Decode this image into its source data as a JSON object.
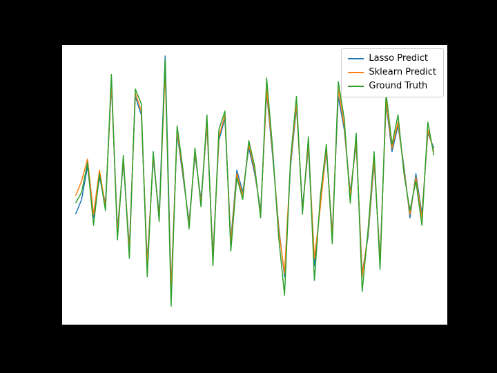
{
  "window": {
    "background_color": "#000000"
  },
  "axes": {
    "background_color": "#ffffff"
  },
  "legend": {
    "position": "upper right",
    "border_color": "#cccccc",
    "background_color": "#ffffff"
  },
  "chart_data": {
    "type": "line",
    "title": "",
    "xlabel": "",
    "ylabel": "",
    "grid": false,
    "legend_position": "upper right",
    "ylim": [
      -3.8,
      3.8
    ],
    "x_margin": 0.035,
    "x": [
      0,
      1,
      2,
      3,
      4,
      5,
      6,
      7,
      8,
      9,
      10,
      11,
      12,
      13,
      14,
      15,
      16,
      17,
      18,
      19,
      20,
      21,
      22,
      23,
      24,
      25,
      26,
      27,
      28,
      29,
      30,
      31,
      32,
      33,
      34,
      35,
      36,
      37,
      38,
      39,
      40,
      41,
      42,
      43,
      44,
      45,
      46,
      47,
      48,
      49,
      50,
      51,
      52,
      53,
      54,
      55,
      56,
      57,
      58,
      59,
      60
    ],
    "series": [
      {
        "name": "Lasso Predict",
        "color": "#1f77b4",
        "values": [
          -0.8,
          -0.4,
          0.5,
          -0.9,
          0.2,
          -0.5,
          2.7,
          -1.2,
          0.6,
          -1.7,
          2.4,
          1.9,
          -2.1,
          0.7,
          -0.8,
          3.5,
          -2.8,
          1.4,
          0.2,
          -1.0,
          0.8,
          -0.4,
          1.6,
          -1.9,
          1.2,
          1.8,
          -1.5,
          0.4,
          -0.2,
          1.0,
          0.3,
          -0.7,
          2.5,
          0.8,
          -1.1,
          -2.5,
          0.5,
          2.1,
          -0.6,
          1.0,
          -2.2,
          -0.5,
          0.9,
          -1.3,
          2.4,
          1.5,
          -0.2,
          1.1,
          -2.4,
          -1.4,
          0.6,
          -2.0,
          2.2,
          0.9,
          1.6,
          0.5,
          -0.9,
          0.3,
          -0.8,
          1.4,
          1.0
        ]
      },
      {
        "name": "Sklearn Predict",
        "color": "#ff7f0e",
        "values": [
          -0.3,
          0.1,
          0.7,
          -0.8,
          0.4,
          -0.6,
          2.8,
          -1.3,
          0.7,
          -1.8,
          2.5,
          2.0,
          -2.2,
          0.8,
          -0.9,
          3.1,
          -2.9,
          1.5,
          0.3,
          -1.1,
          0.9,
          -0.5,
          1.7,
          -2.0,
          1.3,
          1.9,
          -1.6,
          0.3,
          -0.3,
          1.1,
          0.4,
          -0.8,
          2.6,
          0.9,
          -1.2,
          -2.4,
          0.6,
          2.2,
          -0.7,
          1.1,
          -2.0,
          -0.6,
          1.0,
          -1.4,
          2.6,
          1.6,
          -0.3,
          1.2,
          -2.5,
          -1.3,
          0.7,
          -2.1,
          2.3,
          1.0,
          1.7,
          0.4,
          -0.8,
          0.2,
          -0.9,
          1.5,
          0.9
        ]
      },
      {
        "name": "Ground Truth",
        "color": "#2ca02c",
        "values": [
          -0.5,
          -0.2,
          0.6,
          -1.1,
          0.3,
          -0.7,
          3.0,
          -1.5,
          0.8,
          -2.0,
          2.6,
          2.2,
          -2.5,
          0.9,
          -1.0,
          3.4,
          -3.3,
          1.6,
          0.4,
          -1.2,
          1.0,
          -0.6,
          1.9,
          -2.2,
          1.5,
          2.0,
          -1.8,
          0.2,
          -0.4,
          1.2,
          0.5,
          -0.9,
          2.9,
          1.0,
          -1.4,
          -3.0,
          0.7,
          2.4,
          -0.8,
          1.3,
          -2.6,
          -0.3,
          1.1,
          -1.6,
          2.8,
          1.8,
          -0.5,
          1.4,
          -2.9,
          -1.2,
          0.9,
          -2.3,
          2.5,
          1.1,
          1.9,
          0.3,
          -0.7,
          0.1,
          -1.1,
          1.7,
          0.8
        ]
      }
    ]
  }
}
